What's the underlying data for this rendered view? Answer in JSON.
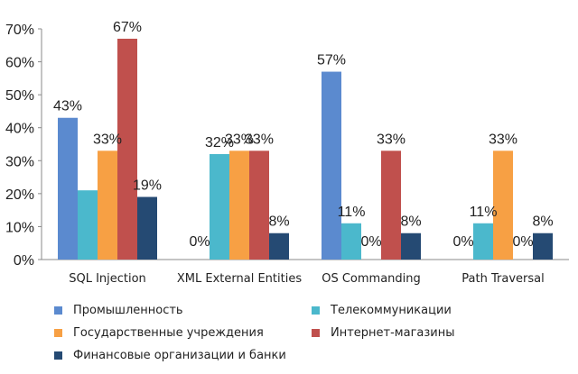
{
  "chart_data": {
    "type": "bar",
    "categories": [
      "SQL Injection",
      "XML External Entities",
      "OS Commanding",
      "Path Traversal"
    ],
    "series": [
      {
        "name": "Промышленность",
        "color": "#5B8ACF",
        "values": [
          43,
          0,
          57,
          0
        ]
      },
      {
        "name": "Телекоммуникации",
        "color": "#4BB8CC",
        "values": [
          21,
          32,
          11,
          11
        ]
      },
      {
        "name": "Государственные учреждения",
        "color": "#F7A044",
        "values": [
          33,
          33,
          0,
          33
        ]
      },
      {
        "name": "Интернет-магазины",
        "color": "#C0504D",
        "values": [
          67,
          33,
          33,
          0
        ]
      },
      {
        "name": "Финансовые организации и банки",
        "color": "#254A73",
        "values": [
          19,
          8,
          8,
          8
        ]
      }
    ],
    "labels": [
      [
        "43%",
        "0%",
        "57%",
        "0%"
      ],
      [
        "",
        "32%",
        "11%",
        "11%"
      ],
      [
        "33%",
        "33%",
        "0%",
        "33%"
      ],
      [
        "67%",
        "33%",
        "33%",
        "0%"
      ],
      [
        "19%",
        "8%",
        "8%",
        "8%"
      ]
    ],
    "yticks": [
      "0%",
      "10%",
      "20%",
      "30%",
      "40%",
      "50%",
      "60%",
      "70%"
    ],
    "ylim": [
      0,
      70
    ],
    "grid": false,
    "legend_position": "bottom"
  }
}
